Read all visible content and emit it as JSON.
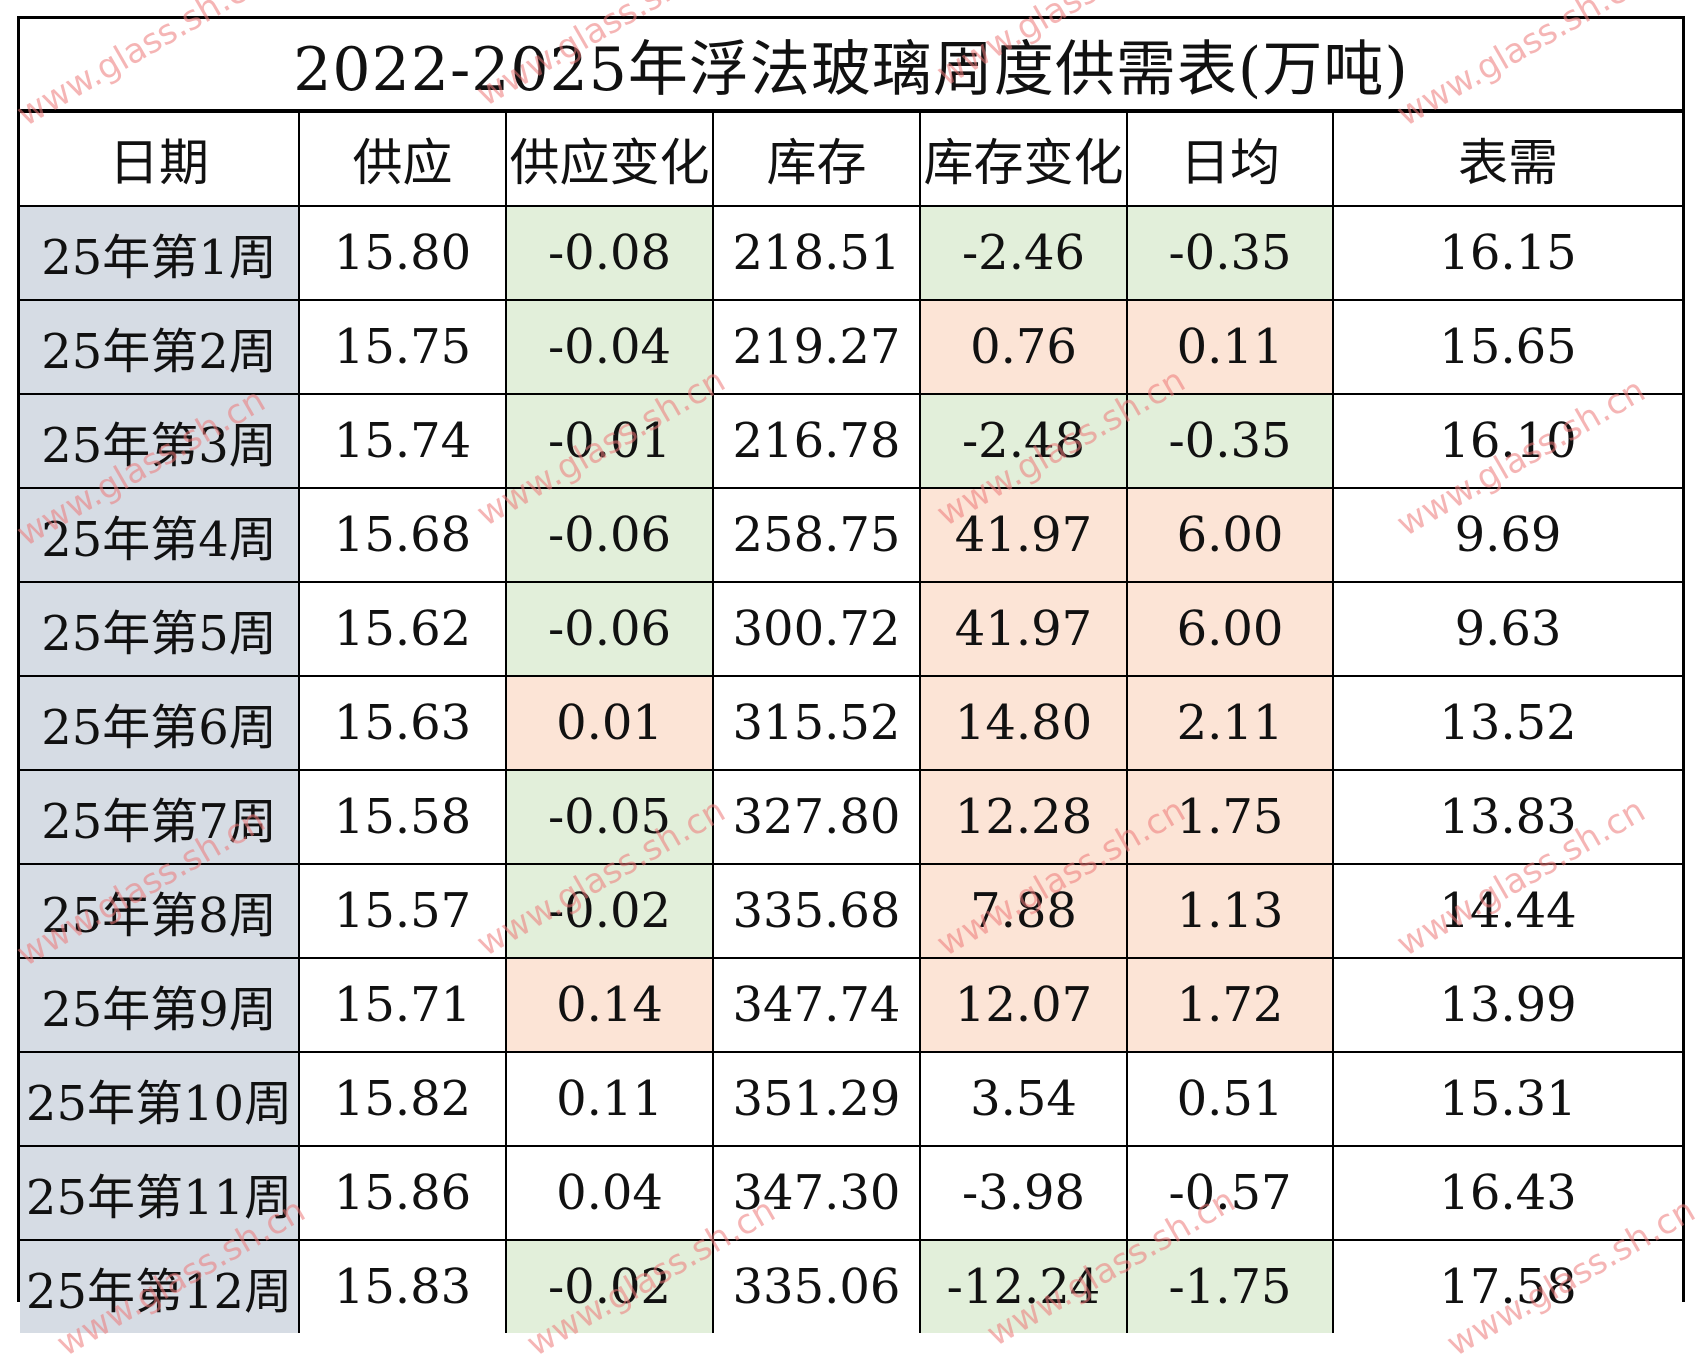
{
  "title": "2022-2025年浮法玻璃周度供需表(万吨)",
  "headers": [
    "日期",
    "供应",
    "供应变化",
    "库存",
    "库存变化",
    "日均",
    "表需"
  ],
  "rows": [
    {
      "date": "25年第1周",
      "supply": "15.80",
      "supply_change": "-0.08",
      "inventory": "218.51",
      "inventory_change": "-2.46",
      "daily_avg": "-0.35",
      "demand": "16.15"
    },
    {
      "date": "25年第2周",
      "supply": "15.75",
      "supply_change": "-0.04",
      "inventory": "219.27",
      "inventory_change": "0.76",
      "daily_avg": "0.11",
      "demand": "15.65"
    },
    {
      "date": "25年第3周",
      "supply": "15.74",
      "supply_change": "-0.01",
      "inventory": "216.78",
      "inventory_change": "-2.48",
      "daily_avg": "-0.35",
      "demand": "16.10"
    },
    {
      "date": "25年第4周",
      "supply": "15.68",
      "supply_change": "-0.06",
      "inventory": "258.75",
      "inventory_change": "41.97",
      "daily_avg": "6.00",
      "demand": "9.69"
    },
    {
      "date": "25年第5周",
      "supply": "15.62",
      "supply_change": "-0.06",
      "inventory": "300.72",
      "inventory_change": "41.97",
      "daily_avg": "6.00",
      "demand": "9.63"
    },
    {
      "date": "25年第6周",
      "supply": "15.63",
      "supply_change": "0.01",
      "inventory": "315.52",
      "inventory_change": "14.80",
      "daily_avg": "2.11",
      "demand": "13.52"
    },
    {
      "date": "25年第7周",
      "supply": "15.58",
      "supply_change": "-0.05",
      "inventory": "327.80",
      "inventory_change": "12.28",
      "daily_avg": "1.75",
      "demand": "13.83"
    },
    {
      "date": "25年第8周",
      "supply": "15.57",
      "supply_change": "-0.02",
      "inventory": "335.68",
      "inventory_change": "7.88",
      "daily_avg": "1.13",
      "demand": "14.44"
    },
    {
      "date": "25年第9周",
      "supply": "15.71",
      "supply_change": "0.14",
      "inventory": "347.74",
      "inventory_change": "12.07",
      "daily_avg": "1.72",
      "demand": "13.99"
    },
    {
      "date": "25年第10周",
      "supply": "15.82",
      "supply_change": "0.11",
      "inventory": "351.29",
      "inventory_change": "3.54",
      "daily_avg": "0.51",
      "demand": "15.31"
    },
    {
      "date": "25年第11周",
      "supply": "15.86",
      "supply_change": "0.04",
      "inventory": "347.30",
      "inventory_change": "-3.98",
      "daily_avg": "-0.57",
      "demand": "16.43"
    },
    {
      "date": "25年第12周",
      "supply": "15.83",
      "supply_change": "-0.02",
      "inventory": "335.06",
      "inventory_change": "-12.24",
      "daily_avg": "-1.75",
      "demand": "17.58"
    }
  ],
  "watermark": {
    "text": "www.glass.sh.cn",
    "color": "#ec7878"
  },
  "colors": {
    "date_bg": "#d6dce4",
    "increase_bg": "#fce4d6",
    "decrease_bg": "#e2efda"
  }
}
